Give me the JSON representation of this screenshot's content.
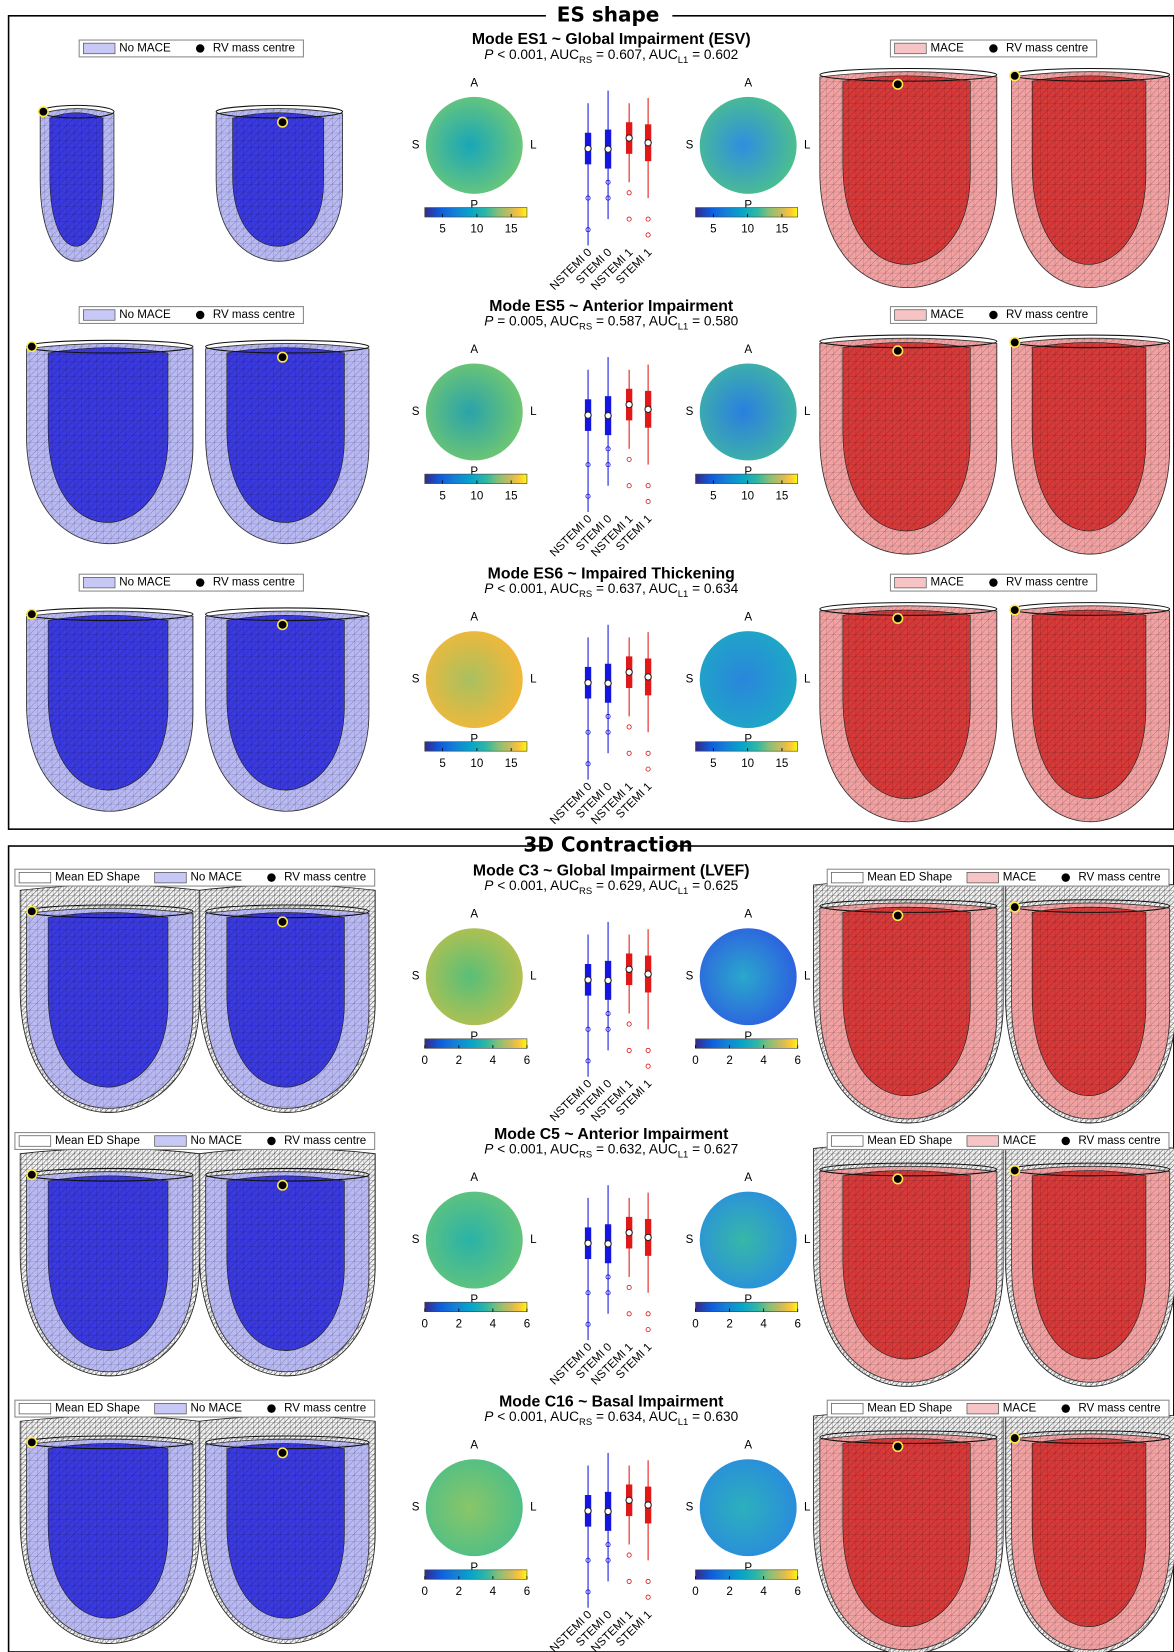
{
  "sections": [
    {
      "title": "ES shape",
      "legend_left": [
        {
          "label": "No MACE",
          "color": "#c8c8f6"
        },
        {
          "label": "RV mass centre"
        }
      ],
      "legend_right": [
        {
          "label": "MACE",
          "color": "#f6c4c4"
        },
        {
          "label": "RV mass centre"
        }
      ],
      "colorbar": {
        "lim": [
          2.4,
          17.3
        ],
        "ticks": [
          5,
          10,
          15
        ]
      },
      "rows": [
        {
          "title": "Mode ES1 ~ Global Impairment (ESV)",
          "stats": [
            {
              "text": "P",
              "italic": true
            },
            {
              "text": " < 0.001, AUC"
            },
            {
              "text": "RS",
              "sub": true
            },
            {
              "text": " = 0.607, AUC"
            },
            {
              "text": "L1",
              "sub": true
            },
            {
              "text": " = 0.602"
            }
          ],
          "maps": [
            {
              "inner": "#19a6b8",
              "outer": "#6ac77a"
            },
            {
              "inner": "#2f8ee0",
              "outer": "#4cbf8e"
            }
          ]
        },
        {
          "title": "Mode ES5 ~ Anterior Impairment",
          "stats": [
            {
              "text": "P",
              "italic": true
            },
            {
              "text": " = 0.005, AUC"
            },
            {
              "text": "RS",
              "sub": true
            },
            {
              "text": " = 0.587, AUC"
            },
            {
              "text": "L1",
              "sub": true
            },
            {
              "text": " = 0.580"
            }
          ],
          "maps": [
            {
              "inner": "#2aa2aa",
              "outer": "#6fc772"
            },
            {
              "inner": "#2a7fe0",
              "outer": "#3fb3a6"
            }
          ]
        },
        {
          "title": "Mode ES6 ~ Impaired Thickening",
          "stats": [
            {
              "text": "P",
              "italic": true
            },
            {
              "text": " < 0.001, AUC"
            },
            {
              "text": "RS",
              "sub": true
            },
            {
              "text": " = 0.637, AUC"
            },
            {
              "text": "L1",
              "sub": true
            },
            {
              "text": " = 0.634"
            }
          ],
          "maps": [
            {
              "inner": "#a8c060",
              "outer": "#f2b83a"
            },
            {
              "inner": "#2a86dc",
              "outer": "#1ea7c6"
            }
          ]
        }
      ]
    },
    {
      "title": "3D Contraction",
      "legend_left": [
        {
          "label": "Mean ED Shape",
          "color": "#ffffff"
        },
        {
          "label": "No MACE",
          "color": "#c8c8f6"
        },
        {
          "label": "RV mass centre"
        }
      ],
      "legend_right": [
        {
          "label": "Mean ED Shape",
          "color": "#ffffff"
        },
        {
          "label": "MACE",
          "color": "#f6c4c4"
        },
        {
          "label": "RV mass centre"
        }
      ],
      "colorbar": {
        "lim": [
          0,
          6
        ],
        "ticks": [
          0,
          2,
          4,
          6
        ]
      },
      "rows": [
        {
          "title": "Mode C3 ~ Global Impairment (LVEF)",
          "stats": [
            {
              "text": "P",
              "italic": true
            },
            {
              "text": " < 0.001, AUC"
            },
            {
              "text": "RS",
              "sub": true
            },
            {
              "text": " = 0.629, AUC"
            },
            {
              "text": "L1",
              "sub": true
            },
            {
              "text": " = 0.625"
            }
          ],
          "maps": [
            {
              "inner": "#58bf78",
              "outer": "#b4c050"
            },
            {
              "inner": "#2aa8cc",
              "outer": "#2d62e0"
            }
          ]
        },
        {
          "title": "Mode C5 ~ Anterior Impairment",
          "stats": [
            {
              "text": "P",
              "italic": true
            },
            {
              "text": " < 0.001, AUC"
            },
            {
              "text": "RS",
              "sub": true
            },
            {
              "text": " = 0.632, AUC"
            },
            {
              "text": "L1",
              "sub": true
            },
            {
              "text": " = 0.627"
            }
          ],
          "maps": [
            {
              "inner": "#2ab2a8",
              "outer": "#62c47c"
            },
            {
              "inner": "#36b8a8",
              "outer": "#2a90dc"
            }
          ]
        },
        {
          "title": "Mode C16 ~ Basal Impairment",
          "stats": [
            {
              "text": "P",
              "italic": true
            },
            {
              "text": " < 0.001, AUC"
            },
            {
              "text": "RS",
              "sub": true
            },
            {
              "text": " = 0.634, AUC"
            },
            {
              "text": "L1",
              "sub": true
            },
            {
              "text": " = 0.630"
            }
          ],
          "maps": [
            {
              "inner": "#8ac668",
              "outer": "#4fbf86"
            },
            {
              "inner": "#2cb0bc",
              "outer": "#2a8ddc"
            }
          ]
        }
      ]
    }
  ],
  "polar_labels": {
    "top": "A",
    "left": "S",
    "right": "L",
    "bottom": "P"
  },
  "box_categories": [
    "NSTEMI 0",
    "STEMI 0",
    "NSTEMI 1",
    "STEMI 1"
  ]
}
